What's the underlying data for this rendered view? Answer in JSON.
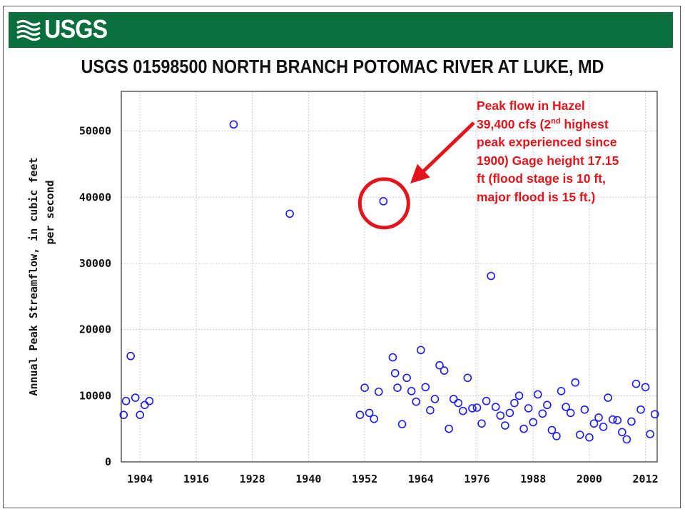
{
  "header": {
    "logo_text": "USGS",
    "brand_color": "#0a6f3c"
  },
  "chart_data": {
    "type": "scatter",
    "title": "USGS 01598500 NORTH BRANCH POTOMAC RIVER AT LUKE, MD",
    "ylabel_line1": "Annual Peak Streamflow, in cubic feet",
    "ylabel_line2": "per second",
    "xlabel": "",
    "xlim": [
      1900,
      2014.5
    ],
    "ylim": [
      0,
      56000
    ],
    "x_ticks": [
      1904,
      1916,
      1928,
      1940,
      1952,
      1964,
      1976,
      1988,
      2000,
      2012
    ],
    "x_tick_labels": [
      "1904",
      "1916",
      "1928",
      "1940",
      "1952",
      "1964",
      "1976",
      "1988",
      "2000",
      "2012"
    ],
    "y_ticks": [
      0,
      10000,
      20000,
      30000,
      40000,
      50000
    ],
    "y_tick_labels": [
      "0",
      "10000",
      "20000",
      "30000",
      "40000",
      "50000"
    ],
    "grid": true,
    "marker": "open-circle",
    "marker_color": "#1a1aff",
    "series": [
      {
        "points": [
          [
            1900.5,
            7100
          ],
          [
            1901,
            9200
          ],
          [
            1902,
            16000
          ],
          [
            1903,
            9700
          ],
          [
            1904,
            7100
          ],
          [
            1905,
            8600
          ],
          [
            1906,
            9200
          ],
          [
            1924,
            51000
          ],
          [
            1936,
            37500
          ],
          [
            1951,
            7100
          ],
          [
            1952,
            11200
          ],
          [
            1953,
            7400
          ],
          [
            1954,
            6500
          ],
          [
            1955,
            10600
          ],
          [
            1956,
            39400
          ],
          [
            1958,
            15800
          ],
          [
            1958.5,
            13400
          ],
          [
            1959,
            11200
          ],
          [
            1960,
            5700
          ],
          [
            1961,
            12700
          ],
          [
            1962,
            10700
          ],
          [
            1963,
            9100
          ],
          [
            1964,
            16900
          ],
          [
            1965,
            11300
          ],
          [
            1966,
            7800
          ],
          [
            1967,
            9500
          ],
          [
            1968,
            14600
          ],
          [
            1969,
            13800
          ],
          [
            1970,
            5000
          ],
          [
            1971,
            9500
          ],
          [
            1972,
            8900
          ],
          [
            1973,
            7700
          ],
          [
            1974,
            12700
          ],
          [
            1975,
            8100
          ],
          [
            1976,
            8200
          ],
          [
            1977,
            5800
          ],
          [
            1978,
            9200
          ],
          [
            1979,
            28100
          ],
          [
            1980,
            8300
          ],
          [
            1981,
            7000
          ],
          [
            1982,
            5500
          ],
          [
            1983,
            7400
          ],
          [
            1984,
            8900
          ],
          [
            1985,
            10000
          ],
          [
            1986,
            5000
          ],
          [
            1987,
            8100
          ],
          [
            1988,
            6000
          ],
          [
            1989,
            10200
          ],
          [
            1990,
            7300
          ],
          [
            1991,
            8600
          ],
          [
            1992,
            4800
          ],
          [
            1993,
            3900
          ],
          [
            1994,
            10700
          ],
          [
            1995,
            8300
          ],
          [
            1996,
            7400
          ],
          [
            1997,
            12000
          ],
          [
            1998,
            4100
          ],
          [
            1999,
            7900
          ],
          [
            2000,
            3700
          ],
          [
            2001,
            5800
          ],
          [
            2002,
            6700
          ],
          [
            2003,
            5300
          ],
          [
            2004,
            9700
          ],
          [
            2005,
            6400
          ],
          [
            2006,
            6300
          ],
          [
            2007,
            4500
          ],
          [
            2008,
            3400
          ],
          [
            2009,
            6100
          ],
          [
            2010,
            11800
          ],
          [
            2011,
            7900
          ],
          [
            2012,
            11300
          ],
          [
            2013,
            4200
          ],
          [
            2014,
            7200
          ]
        ]
      }
    ],
    "highlight": {
      "x": 1956,
      "y": 39400,
      "color": "#e3141b"
    },
    "annotation": {
      "line1": "Peak flow in Hazel",
      "line2_pre": "39,400 cfs (2",
      "line2_sup": "nd",
      "line2_post": " highest",
      "line3": "peak experienced since",
      "line4": "1900)  Gage height  17.15",
      "line5": "ft (flood stage is 10 ft,",
      "line6": "major flood is 15 ft.)"
    }
  }
}
